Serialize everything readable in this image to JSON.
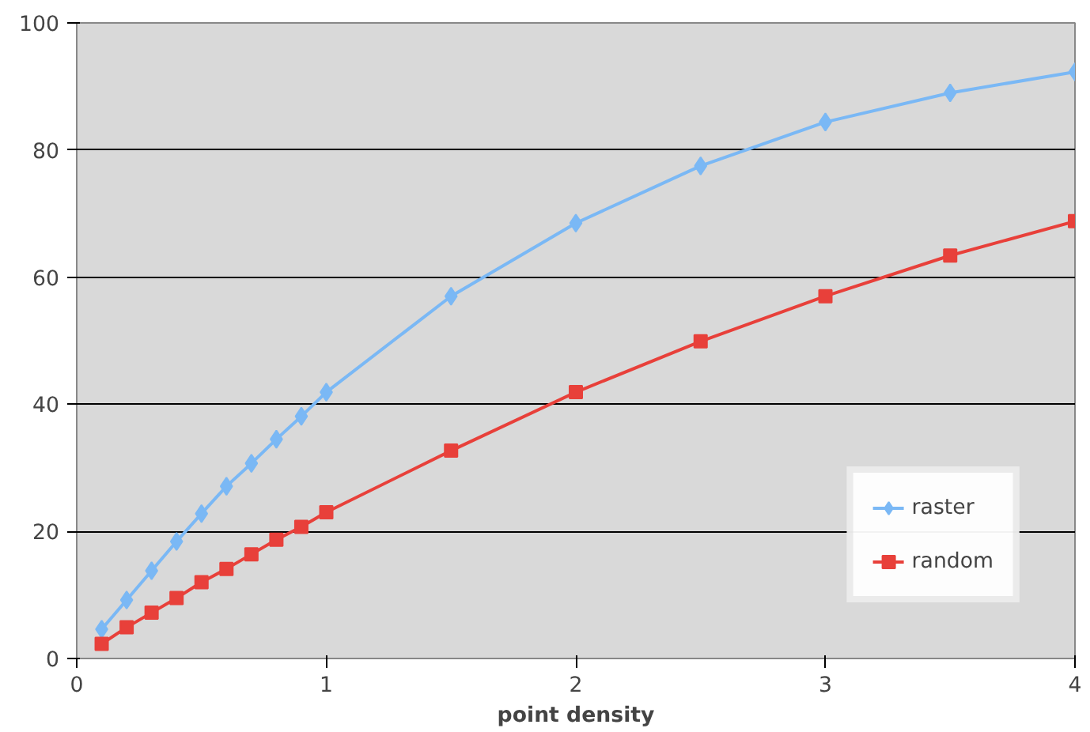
{
  "chart_data": {
    "type": "line",
    "xlabel": "point density",
    "x": [
      0.1,
      0.2,
      0.3,
      0.4,
      0.5,
      0.6,
      0.7,
      0.8,
      0.9,
      1,
      1.5,
      2,
      2.5,
      3,
      3.5,
      4
    ],
    "series": [
      {
        "name": "raster",
        "color": "#7ab8f5",
        "marker": "diamond",
        "values": [
          4.6,
          9.2,
          13.8,
          18.4,
          22.8,
          27.1,
          30.7,
          34.5,
          38.1,
          41.9,
          57,
          68.5,
          77.5,
          84.4,
          89,
          92.3
        ]
      },
      {
        "name": "random",
        "color": "#e8403a",
        "marker": "square",
        "values": [
          2.3,
          4.9,
          7.2,
          9.5,
          12,
          14.1,
          16.4,
          18.7,
          20.7,
          23,
          32.7,
          41.9,
          49.9,
          57,
          63.4,
          68.8
        ]
      }
    ],
    "xlim": [
      0,
      4
    ],
    "xticks": [
      0,
      1,
      2,
      3,
      4
    ],
    "ylim": [
      0,
      100
    ],
    "yticks": [
      0,
      20,
      40,
      60,
      80,
      100
    ],
    "grid": "y",
    "legend": "bottom right"
  }
}
